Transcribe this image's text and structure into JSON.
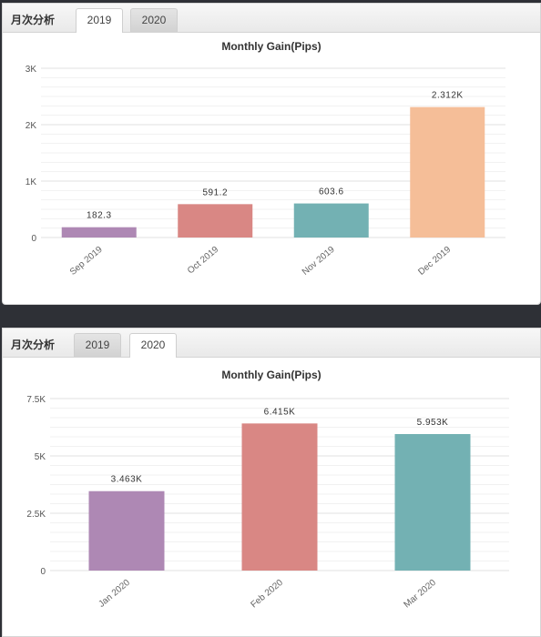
{
  "panels": [
    {
      "section_title": "月次分析",
      "tabs": [
        {
          "label": "2019",
          "active": true
        },
        {
          "label": "2020",
          "active": false
        }
      ],
      "chart_data": {
        "type": "bar",
        "title": "Monthly Gain(Pips)",
        "categories": [
          "Sep 2019",
          "Oct 2019",
          "Nov 2019",
          "Dec 2019"
        ],
        "values": [
          182.3,
          591.2,
          603.6,
          2312
        ],
        "data_labels": [
          "182.3",
          "591.2",
          "603.6",
          "2.312K"
        ],
        "colors": [
          "#ae88b4",
          "#d98784",
          "#73b1b3",
          "#f5be98"
        ],
        "yticks": [
          0,
          1000,
          2000,
          3000
        ],
        "ytick_labels": [
          "0",
          "1K",
          "2K",
          "3K"
        ],
        "ylim": [
          0,
          3000
        ],
        "grid": true,
        "legend": "none"
      }
    },
    {
      "section_title": "月次分析",
      "tabs": [
        {
          "label": "2019",
          "active": false
        },
        {
          "label": "2020",
          "active": true
        }
      ],
      "chart_data": {
        "type": "bar",
        "title": "Monthly Gain(Pips)",
        "categories": [
          "Jan 2020",
          "Feb 2020",
          "Mar 2020"
        ],
        "values": [
          3463,
          6415,
          5953
        ],
        "data_labels": [
          "3.463K",
          "6.415K",
          "5.953K"
        ],
        "colors": [
          "#ae88b4",
          "#d98784",
          "#73b1b3"
        ],
        "yticks": [
          0,
          2500,
          5000,
          7500
        ],
        "ytick_labels": [
          "0",
          "2.5K",
          "5K",
          "7.5K"
        ],
        "ylim": [
          0,
          7500
        ],
        "grid": true,
        "legend": "none"
      }
    }
  ]
}
